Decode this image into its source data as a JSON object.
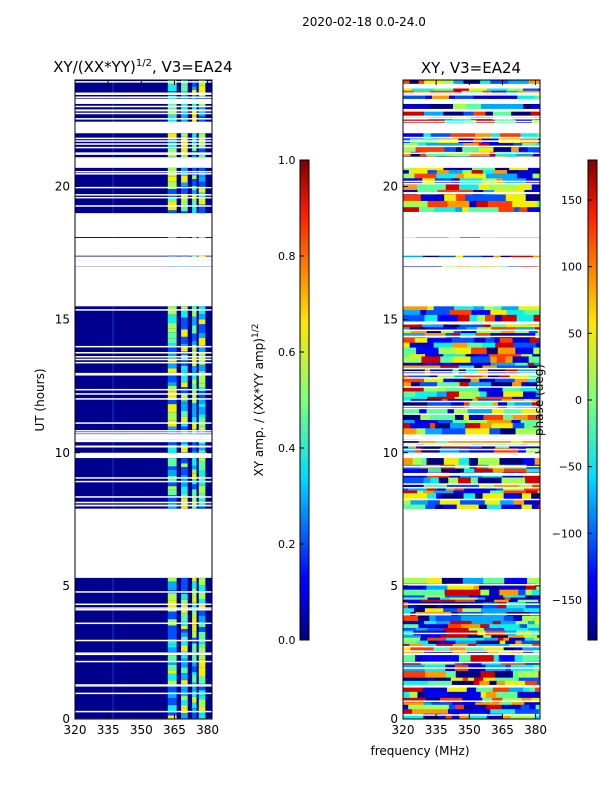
{
  "figure": {
    "suptitle": "2020-02-18 0.0-24.0"
  },
  "chart_data": [
    {
      "type": "heatmap",
      "title": "XY/(XX*YY)",
      "title_exponent": "1/2",
      "title_suffix": ", V3=EA24",
      "xlabel": "",
      "ylabel": "UT (hours)",
      "xlim": [
        320,
        382
      ],
      "ylim": [
        0,
        24
      ],
      "xticks": [
        320,
        335,
        350,
        365,
        380
      ],
      "yticks": [
        0,
        5,
        10,
        15,
        20
      ],
      "colorbar": {
        "label": "XY amp. / (XX*YY amp)",
        "label_exponent": "1/2",
        "range": [
          0.0,
          1.0
        ],
        "ticks": [
          "0.0",
          "0.2",
          "0.4",
          "0.6",
          "0.8",
          "1.0"
        ]
      },
      "data_bands_hours": [
        [
          0.0,
          2.4
        ],
        [
          2.5,
          5.3
        ],
        [
          7.9,
          9.8
        ],
        [
          10.0,
          10.5
        ],
        [
          10.7,
          12.9
        ],
        [
          13.0,
          15.5
        ],
        [
          16.9,
          17.0
        ],
        [
          17.2,
          17.4
        ],
        [
          18.0,
          18.1
        ],
        [
          19.0,
          20.7
        ],
        [
          21.1,
          22.0
        ],
        [
          22.4,
          23.1
        ],
        [
          23.3,
          24.0
        ]
      ]
    },
    {
      "type": "heatmap",
      "title": "XY, V3=EA24",
      "xlabel": "frequency (MHz)",
      "ylabel": "",
      "xlim": [
        320,
        382
      ],
      "ylim": [
        0,
        24
      ],
      "xticks": [
        320,
        335,
        350,
        365,
        380
      ],
      "yticks": [
        0,
        5,
        10,
        15,
        20
      ],
      "colorbar": {
        "label": "phase (deg)",
        "range": [
          -180,
          180
        ],
        "ticks": [
          "−150",
          "−100",
          "−50",
          "0",
          "50",
          "100",
          "150"
        ]
      },
      "data_bands_hours": [
        [
          0.0,
          2.4
        ],
        [
          2.5,
          5.3
        ],
        [
          7.9,
          9.8
        ],
        [
          10.0,
          10.5
        ],
        [
          10.7,
          12.9
        ],
        [
          13.0,
          15.5
        ],
        [
          16.9,
          17.0
        ],
        [
          17.2,
          17.4
        ],
        [
          18.0,
          18.1
        ],
        [
          19.0,
          20.7
        ],
        [
          21.1,
          22.0
        ],
        [
          22.4,
          23.1
        ],
        [
          23.3,
          24.0
        ]
      ]
    }
  ],
  "colors": {
    "axis": "#000000",
    "background": "#ffffff"
  }
}
